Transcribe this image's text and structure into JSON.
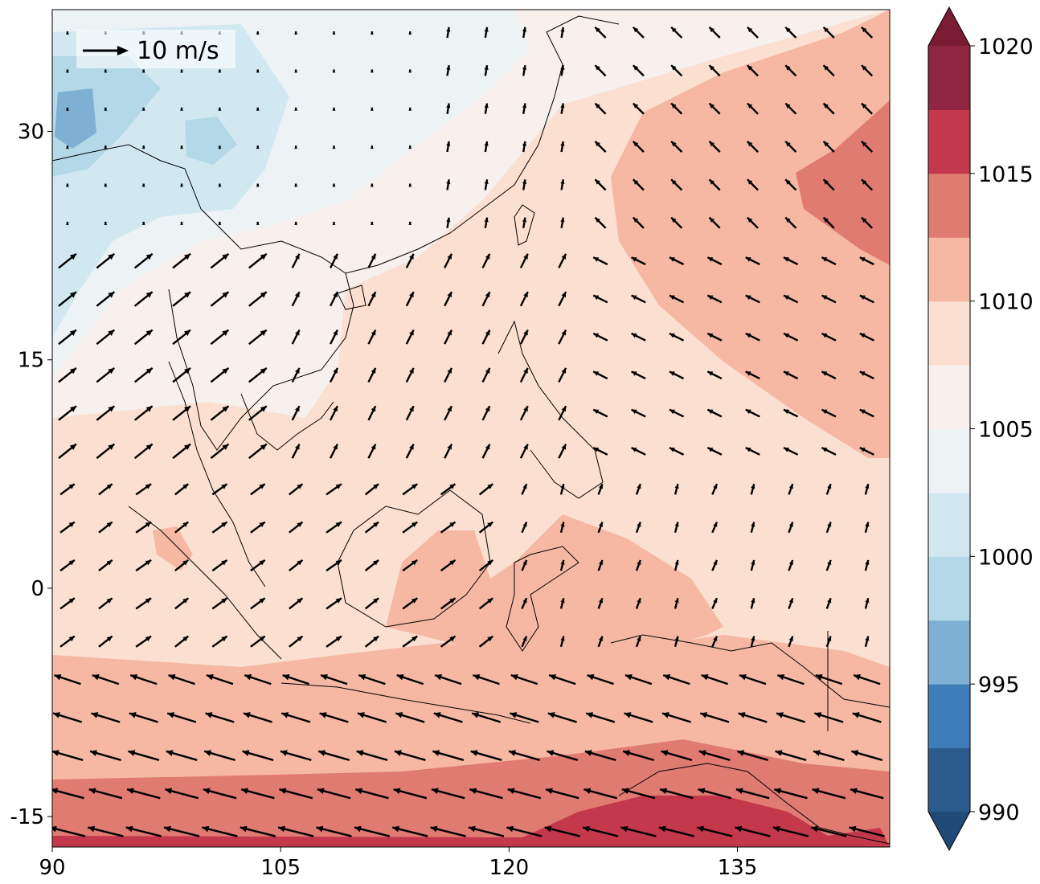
{
  "map": {
    "x_ticks": [
      "90",
      "105",
      "120",
      "135"
    ],
    "y_ticks": [
      "30",
      "15",
      "0",
      "-15"
    ],
    "x_tick_values": [
      90,
      105,
      120,
      135
    ],
    "y_tick_values": [
      30,
      15,
      0,
      -15
    ],
    "lon_range": [
      90,
      145
    ],
    "lat_range": [
      -17,
      38
    ],
    "quiver_key_label": "10 m/s"
  },
  "colorbar": {
    "tick_labels": [
      "990",
      "995",
      "1000",
      "1005",
      "1010",
      "1015",
      "1020"
    ],
    "tick_values": [
      990,
      995,
      1000,
      1005,
      1010,
      1015,
      1020
    ],
    "min": 990,
    "max": 1020,
    "extend": "both",
    "colors": [
      "#2b5b8c",
      "#3f7db9",
      "#7fb0d4",
      "#b3d8e7",
      "#d2e8f1",
      "#edf3f5",
      "#f7f0ec",
      "#fbdfd0",
      "#f6b8a3",
      "#e07b72",
      "#c3384b",
      "#8f2540"
    ],
    "under_color": "#214a78",
    "over_color": "#7a1d33"
  },
  "chart_data": {
    "type": "heatmap",
    "title": "",
    "xlabel": "",
    "ylabel": "",
    "xlim": [
      90,
      145
    ],
    "ylim": [
      -17,
      38
    ],
    "colorbar_ticks": [
      990,
      995,
      1000,
      1005,
      1010,
      1015,
      1020
    ],
    "quiver_key": "10 m/s"
  }
}
